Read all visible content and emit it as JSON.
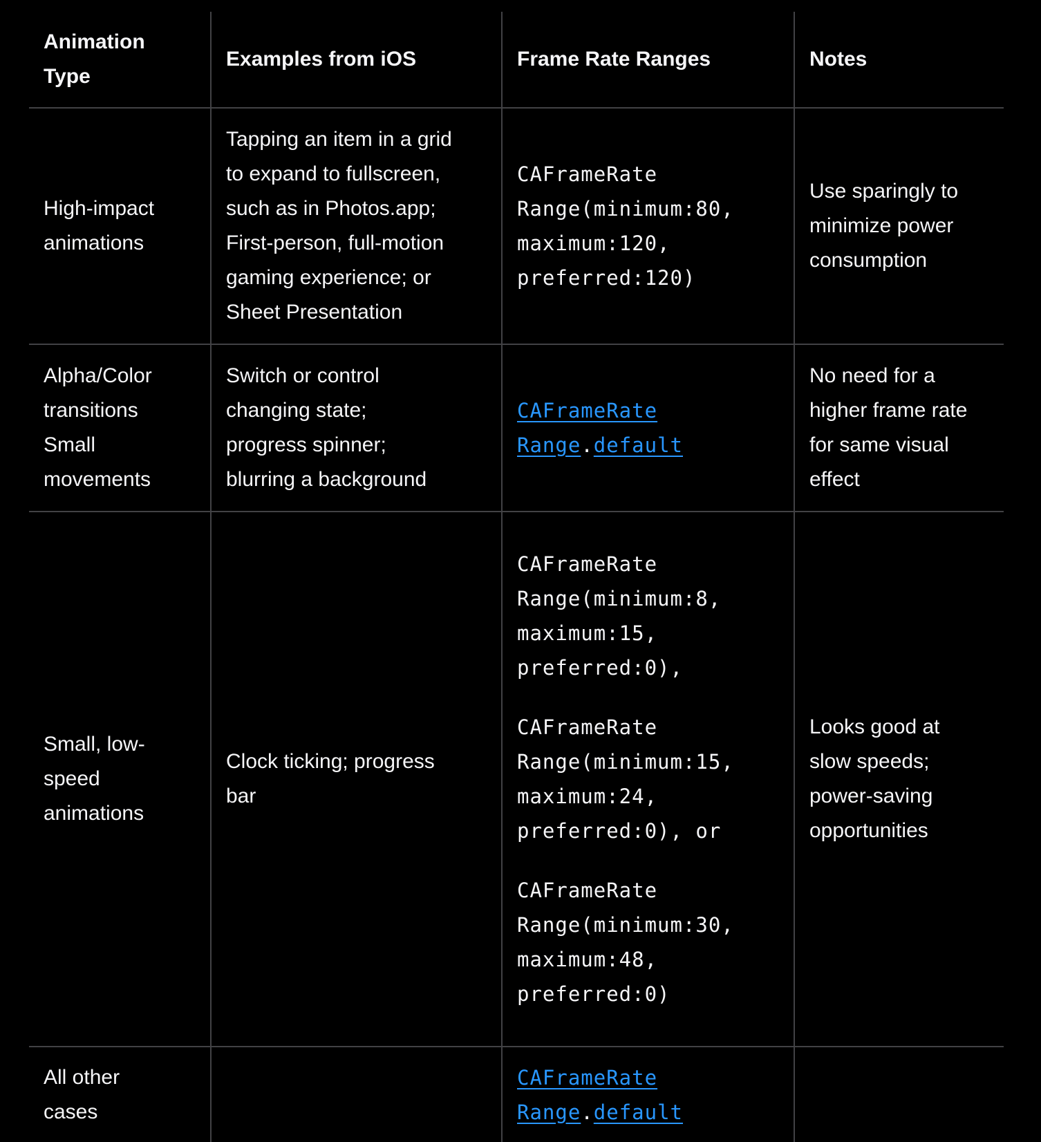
{
  "headers": [
    "Animation\nType",
    "Examples from iOS",
    "Frame Rate Ranges",
    "Notes"
  ],
  "rows": [
    {
      "type": "High-impact\nanimations",
      "examples": "Tapping an item in a grid\nto expand to fullscreen,\nsuch as in Photos.app;\nFirst-person, full-motion\ngaming experience; or\nSheet Presentation",
      "ranges": [
        "CAFrameRate\nRange(minimum:80,\nmaximum:120,\npreferred:120)"
      ],
      "notes": "Use sparingly to\nminimize power\nconsumption"
    },
    {
      "type": "Alpha/Color\ntransitions\nSmall\nmovements",
      "examples": "Switch or control\nchanging state;\nprogress spinner;\nblurring a background",
      "link": {
        "part1": "CAFrameRate\nRange",
        "dot": ".",
        "part2": "default"
      },
      "notes": "No need for a\nhigher frame rate\nfor same visual\neffect"
    },
    {
      "type": "Small, low-\nspeed\nanimations",
      "examples": "Clock ticking; progress\nbar",
      "ranges": [
        "CAFrameRate\nRange(minimum:8,\nmaximum:15,\npreferred:0),",
        "CAFrameRate\nRange(minimum:15,\nmaximum:24,\npreferred:0), or",
        "CAFrameRate\nRange(minimum:30,\nmaximum:48,\npreferred:0)"
      ],
      "notes": "Looks good at\nslow speeds;\npower-saving\nopportunities"
    },
    {
      "type": "All other\ncases",
      "examples": "",
      "link": {
        "part1": "CAFrameRate\nRange",
        "dot": ".",
        "part2": "default"
      },
      "notes": ""
    }
  ],
  "colors": {
    "background": "#000000",
    "text": "#f5f5f7",
    "link": "#2997ff",
    "border": "#424245"
  }
}
